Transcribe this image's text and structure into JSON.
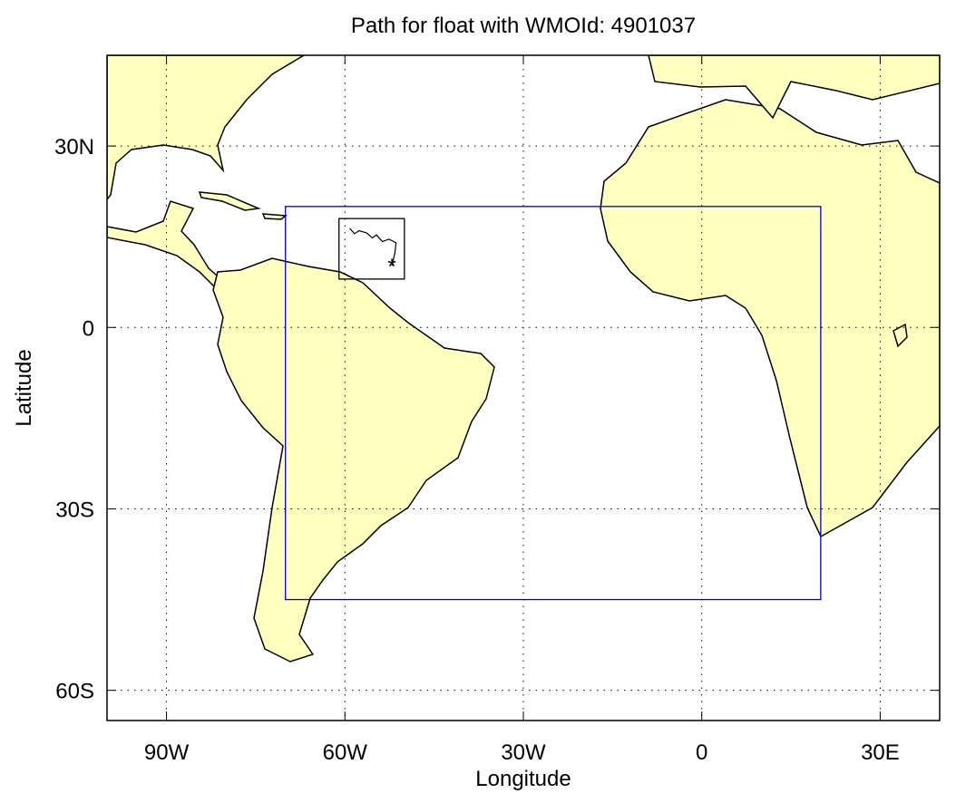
{
  "chart_data": {
    "type": "map",
    "title": "Path for float with WMOId: 4901037",
    "x_label": "Longitude",
    "y_label": "Latitude",
    "xlim": [
      -100,
      40
    ],
    "ylim": [
      -65,
      45
    ],
    "xticks": [
      {
        "value": -90,
        "label": "90W"
      },
      {
        "value": -60,
        "label": "60W"
      },
      {
        "value": -30,
        "label": "30W"
      },
      0,
      {
        "value": 30,
        "label": "30E"
      }
    ],
    "yticks": [
      {
        "value": -60,
        "label": "60S"
      },
      {
        "value": -30,
        "label": "30S"
      },
      0,
      {
        "value": 30,
        "label": "30N"
      }
    ],
    "grid": true,
    "region_box": {
      "color": "#0000cc",
      "lon": [
        -70,
        20
      ],
      "lat": [
        -45,
        20
      ]
    },
    "inset_box": {
      "color": "#000000",
      "lon": [
        -61,
        -50
      ],
      "lat": [
        8,
        18
      ]
    },
    "float_path": {
      "color": "#000000",
      "lon": [
        -59.2,
        -58.4,
        -57.6,
        -56.3,
        -55.4,
        -54.7,
        -53.7,
        -52.6,
        -51.4,
        -51.6,
        -52.1
      ],
      "lat": [
        16.4,
        15.5,
        16.0,
        15.6,
        14.8,
        15.3,
        14.2,
        14.6,
        14.0,
        12.3,
        10.2
      ]
    }
  }
}
